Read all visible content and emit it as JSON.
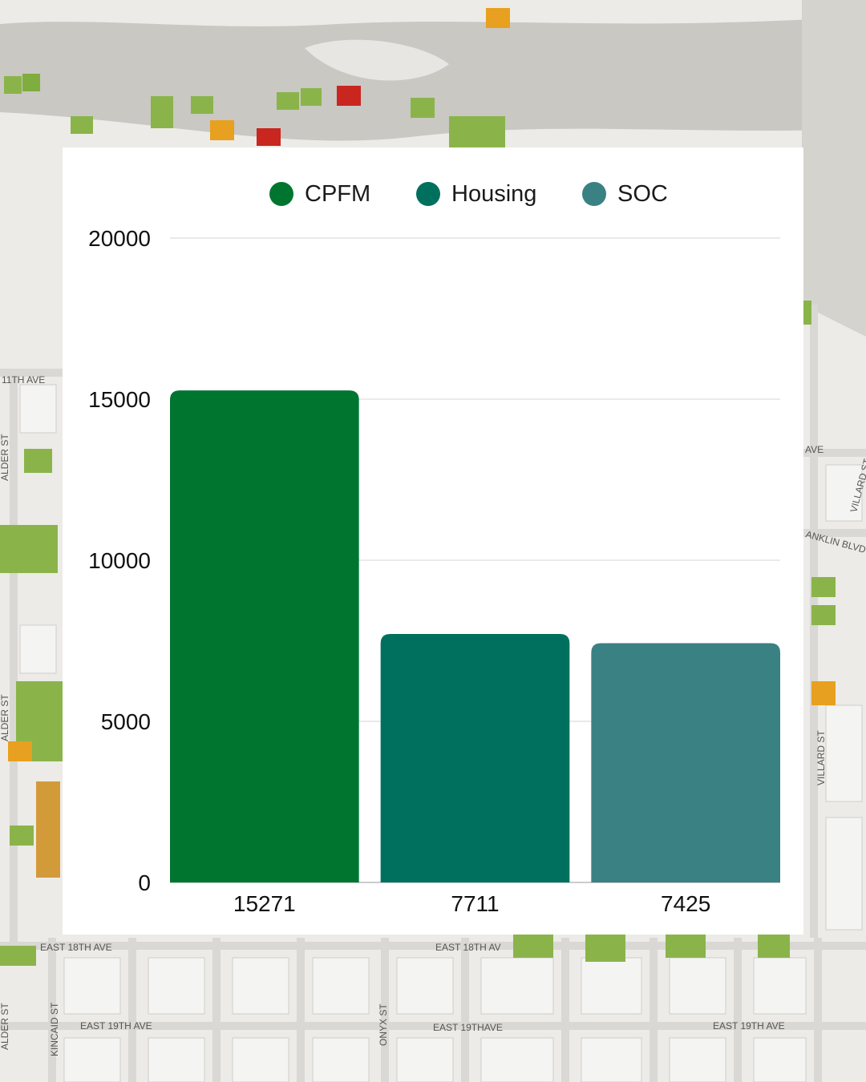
{
  "map_labels": {
    "11th_ave": "11TH AVE",
    "alder_st_1": "ALDER ST",
    "alder_st_2": "ALDER ST",
    "alder_st_3": "ALDER ST",
    "east_18th_ave_1": "EAST 18TH AVE",
    "east_18th_ave_2": "EAST 18TH AV",
    "east_19th_ave_1": "EAST 19TH AVE",
    "east_19th_ave_2": "EAST 19TH AVE",
    "east_19th_ave_3": "EAST 19THAVE",
    "kincaid_st": "KINCAID ST",
    "onyx_st": "ONYX ST",
    "villard_st_1": "VILLARD ST",
    "villard_st_2": "VILLARD ST",
    "franklin_blvd": "ANKLIN BLVD",
    "ave_right": "AVE"
  },
  "colors": {
    "cpfm": "#007530",
    "housing": "#00705e",
    "soc": "#3a8183",
    "grid": "#d6d6d6",
    "axis": "#9a9a9a",
    "card": "#ffffff"
  },
  "chart_data": {
    "type": "bar",
    "title": "",
    "xlabel": "",
    "ylabel": "",
    "categories": [
      "15271",
      "7711",
      "7425"
    ],
    "series": [
      {
        "name": "CPFM",
        "values": [
          15271,
          null,
          null
        ],
        "color": "#007530"
      },
      {
        "name": "Housing",
        "values": [
          null,
          7711,
          null
        ],
        "color": "#00705e"
      },
      {
        "name": "SOC",
        "values": [
          null,
          null,
          7425
        ],
        "color": "#3a8183"
      }
    ],
    "values": [
      15271,
      7711,
      7425
    ],
    "ylim": [
      0,
      20000
    ],
    "yticks": [
      0,
      5000,
      10000,
      15000,
      20000
    ],
    "grid": true,
    "legend": "top-center"
  }
}
